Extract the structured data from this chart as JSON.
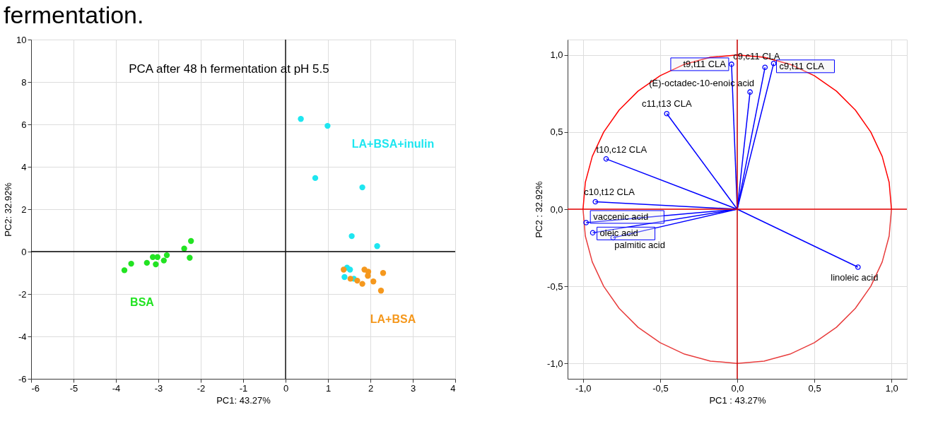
{
  "chart_data": [
    {
      "type": "scatter",
      "title": "PCA after 48 h fermentation at pH 5.5",
      "annotations": [
        "fermentation."
      ],
      "xlabel": "PC1: 43.27%",
      "ylabel": "PC2: 32.92%",
      "xlim": [
        -6,
        4
      ],
      "ylim": [
        -6,
        10
      ],
      "xticks": [
        -6,
        -5,
        -4,
        -3,
        -2,
        -1,
        0,
        1,
        2,
        3,
        4
      ],
      "yticks": [
        -6,
        -4,
        -2,
        0,
        2,
        4,
        6,
        8,
        10
      ],
      "grid": true,
      "marker": "circle",
      "ref_lines": [
        {
          "axis": "y",
          "value": 0,
          "color": "#000000"
        },
        {
          "axis": "x",
          "value": 0,
          "color": "#141414"
        }
      ],
      "series": [
        {
          "name": "LA+BSA+inulin",
          "color": "#1ee6f0",
          "x": [
            0.36,
            0.99,
            0.7,
            1.81,
            1.56,
            2.16,
            1.45,
            1.52,
            1.39,
            1.61
          ],
          "values": [
            6.26,
            5.93,
            3.47,
            3.03,
            0.73,
            0.26,
            -0.76,
            -0.85,
            -1.2,
            -1.28
          ]
        },
        {
          "name": "BSA",
          "color": "#22e322",
          "x": [
            -3.8,
            -3.64,
            -3.27,
            -3.13,
            -3.02,
            -3.06,
            -2.87,
            -2.8,
            -2.39,
            -2.23,
            -2.26
          ],
          "values": [
            -0.88,
            -0.57,
            -0.53,
            -0.26,
            -0.26,
            -0.6,
            -0.42,
            -0.17,
            0.14,
            0.5,
            -0.29
          ]
        },
        {
          "name": "LA+BSA",
          "color": "#f5981d",
          "x": [
            1.37,
            1.86,
            1.95,
            1.94,
            2.3,
            1.53,
            1.69,
            1.81,
            2.07,
            2.25
          ],
          "values": [
            -0.85,
            -0.85,
            -0.95,
            -1.14,
            -1.01,
            -1.28,
            -1.37,
            -1.52,
            -1.41,
            -1.84
          ]
        }
      ]
    },
    {
      "type": "scatter",
      "xlabel": "PC1 : 43.27%",
      "ylabel": "PC2 : 32.92%",
      "xlim": [
        -1.1,
        1.1
      ],
      "ylim": [
        -1.1,
        1.1
      ],
      "xticks": [
        {
          "value": -1,
          "label": "-1,0"
        },
        {
          "value": -0.5,
          "label": "-0,5"
        },
        {
          "value": 0,
          "label": "0,0"
        },
        {
          "value": 0.5,
          "label": "0,5"
        },
        {
          "value": 1,
          "label": "1,0"
        }
      ],
      "yticks": [
        {
          "value": -1,
          "label": "-1,0"
        },
        {
          "value": -0.5,
          "label": "-0,5"
        },
        {
          "value": 0,
          "label": "0,0"
        },
        {
          "value": 0.5,
          "label": "0,5"
        },
        {
          "value": 1,
          "label": "1,0"
        }
      ],
      "grid": true,
      "ref_lines": [
        {
          "axis": "y",
          "value": 0,
          "color": "#e60000"
        },
        {
          "axis": "x",
          "value": 0,
          "color": "#cc0000"
        }
      ],
      "series": [
        {
          "type": "line",
          "color": "#ff0000",
          "x": [
            1,
            0.985,
            0.94,
            0.866,
            0.766,
            0.643,
            0.5,
            0.342,
            0.174,
            0,
            -0.174,
            -0.342,
            -0.5,
            -0.643,
            -0.766,
            -0.866,
            -0.94,
            -0.985,
            -1
          ],
          "values": [
            0,
            0.174,
            0.342,
            0.5,
            0.643,
            0.766,
            0.866,
            0.94,
            0.985,
            1,
            0.985,
            0.94,
            0.866,
            0.766,
            0.643,
            0.5,
            0.342,
            0.174,
            0
          ]
        },
        {
          "type": "line",
          "color": "#e83c3c",
          "x": [
            -1,
            -0.985,
            -0.94,
            -0.866,
            -0.766,
            -0.643,
            -0.5,
            -0.342,
            -0.174,
            0,
            0.174,
            0.342,
            0.5,
            0.643,
            0.766,
            0.866,
            0.94,
            0.985,
            1
          ],
          "values": [
            0,
            -0.174,
            -0.342,
            -0.5,
            -0.643,
            -0.766,
            -0.866,
            -0.94,
            -0.985,
            -1,
            -0.985,
            -0.94,
            -0.866,
            -0.766,
            -0.643,
            -0.5,
            -0.342,
            -0.174,
            0
          ]
        },
        {
          "type": "lollipop",
          "marker": "circle",
          "color": "#0000ff",
          "x": [
            -0.037,
            0.18,
            0.236,
            0.083,
            -0.457,
            -0.85,
            -0.92,
            -0.98,
            -0.937,
            -0.805,
            0.783
          ],
          "values": [
            0.94,
            0.92,
            0.945,
            0.76,
            0.62,
            0.326,
            0.048,
            -0.087,
            -0.153,
            -0.185,
            -0.376
          ],
          "value_labels": [
            "t9,t11 CLA",
            "c9,c11 CLA",
            "c9,t11 CLA",
            "(E)-octadec-10-enoic acid",
            "c11,t13 CLA",
            "t10,c12 CLA",
            "c10,t12 CLA",
            "vaccenic acid",
            "oleic acid",
            "palmitic acid",
            "linoleic acid"
          ]
        }
      ]
    }
  ]
}
